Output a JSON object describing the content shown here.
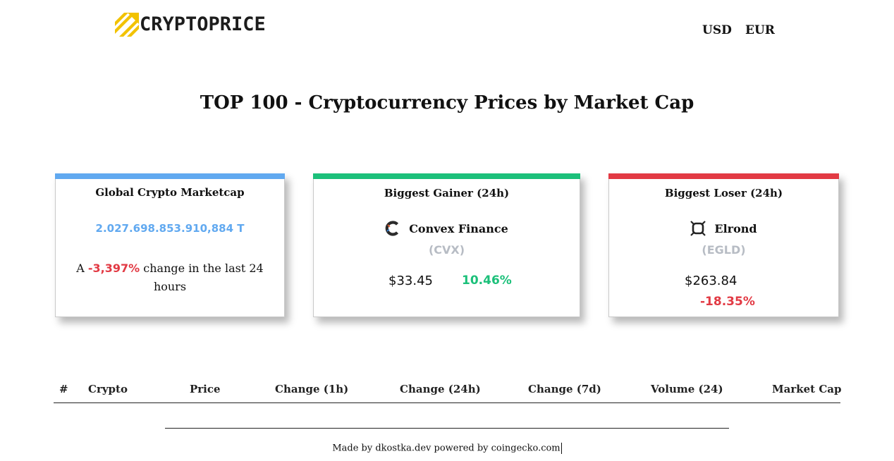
{
  "header": {
    "logo_text": "CRYPTOPRICE",
    "logo_icon": "diagonal-stripes-arrow-icon",
    "currencies": [
      "USD",
      "EUR"
    ]
  },
  "page_title": "TOP 100 - Cryptocurrency Prices by Market Cap",
  "global_card": {
    "title": "Global Crypto Marketcap",
    "marketcap": "2.027.698.853.910,884 T",
    "change_prefix": "A",
    "change_value": "-3,397%",
    "change_suffix": "change in the last 24 hours"
  },
  "gainer_card": {
    "title": "Biggest Gainer (24h)",
    "coin_name": "Convex Finance",
    "coin_symbol": "(CVX)",
    "coin_icon": "convex-logo-icon",
    "price": "$33.45",
    "change": "10.46%"
  },
  "loser_card": {
    "title": "Biggest Loser (24h)",
    "coin_name": "Elrond",
    "coin_symbol": "(EGLD)",
    "coin_icon": "elrond-logo-icon",
    "price": "$263.84",
    "change": "-18.35%"
  },
  "table": {
    "columns": [
      "#",
      "Crypto",
      "Price",
      "Change (1h)",
      "Change (24h)",
      "Change (7d)",
      "Volume (24)",
      "Market Cap"
    ]
  },
  "footer": {
    "text": "Made by dkostka.dev powered by coingecko.com"
  },
  "colors": {
    "global_accent": "#61a9f0",
    "gainer_accent": "#1cc07a",
    "loser_accent": "#e23a44",
    "logo_yellow": "#f2c200"
  }
}
